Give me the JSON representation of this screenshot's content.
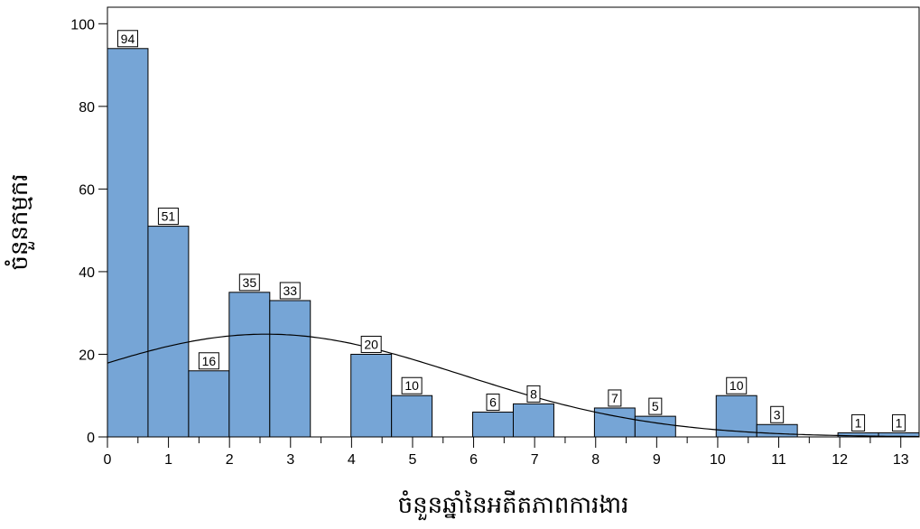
{
  "chart_data": {
    "type": "bar",
    "xlabel": "ចំនួនឆ្នាំនៃអតីតភាពការងារ",
    "ylabel": "ចំនួនកម្មករ",
    "ylim": [
      0,
      104
    ],
    "xlim": [
      0,
      13.3
    ],
    "bin_width": 0.665,
    "bin_starts": [
      0,
      0.665,
      1.33,
      1.995,
      2.66,
      3.99,
      4.655,
      5.985,
      6.65,
      7.98,
      8.645,
      9.975,
      10.64,
      11.97,
      12.635
    ],
    "values": [
      94,
      51,
      16,
      35,
      33,
      20,
      10,
      6,
      8,
      7,
      5,
      10,
      3,
      1,
      1
    ],
    "x_ticks": [
      "0",
      "1",
      "2",
      "3",
      "4",
      "5",
      "6",
      "7",
      "8",
      "9",
      "10",
      "11",
      "12",
      "13"
    ],
    "y_ticks": [
      "0",
      "20",
      "40",
      "60",
      "80",
      "100"
    ],
    "normal_curve": {
      "mean": 2.6,
      "sd": 3.2,
      "n": 300
    },
    "bar_color": "#76A5D6",
    "bar_edge_color": "#000000",
    "grid": false
  }
}
